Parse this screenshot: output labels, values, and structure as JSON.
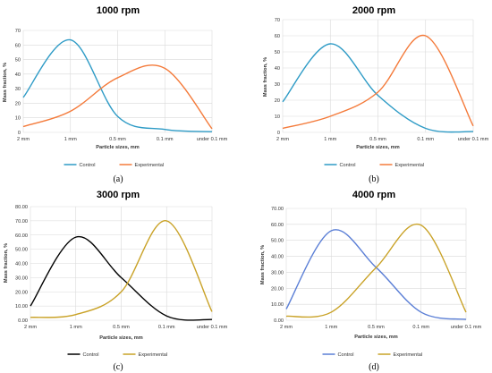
{
  "chart_data": [
    {
      "type": "line",
      "panel": "(a)",
      "title": "1000 rpm",
      "xlabel": "Particle sizes, mm",
      "ylabel": "Mass fraction, %",
      "categories": [
        "2 mm",
        "1 mm",
        "0.5 mm",
        "0.1 mm",
        "under 0.1 mm"
      ],
      "ylim": [
        0,
        70
      ],
      "yticks": [
        "0",
        "10",
        "20",
        "30",
        "40",
        "50",
        "60",
        "70"
      ],
      "grid": true,
      "legend": "bottom",
      "series": [
        {
          "name": "Control",
          "color": "#2E9BC6",
          "values": [
            24,
            63.5,
            11,
            2,
            0.5
          ]
        },
        {
          "name": "Experimental",
          "color": "#F47A3A",
          "values": [
            4,
            14.5,
            37.5,
            44,
            2.5
          ]
        }
      ]
    },
    {
      "type": "line",
      "panel": "(b)",
      "title": "2000 rpm",
      "xlabel": "Particle sizes, mm",
      "ylabel": "Mass fraction, %",
      "categories": [
        "2 mm",
        "1 mm",
        "0.5 mm",
        "0.1 mm",
        "under 0.1 mm"
      ],
      "ylim": [
        0,
        70
      ],
      "yticks": [
        "0",
        "10",
        "20",
        "30",
        "40",
        "50",
        "60",
        "70"
      ],
      "grid": true,
      "legend": "bottom",
      "series": [
        {
          "name": "Control",
          "color": "#2E9BC6",
          "values": [
            19,
            55,
            23,
            2.5,
            0.5
          ]
        },
        {
          "name": "Experimental",
          "color": "#F47A3A",
          "values": [
            2.5,
            10,
            25,
            60,
            4
          ]
        }
      ]
    },
    {
      "type": "line",
      "panel": "(c)",
      "title": "3000 rpm",
      "xlabel": "Particle sizes, mm",
      "ylabel": "Mass fraction, %",
      "categories": [
        "2 mm",
        "1 mm",
        "0.5 mm",
        "0.1 mm",
        "under 0.1 mm"
      ],
      "ylim": [
        0,
        80
      ],
      "yticks": [
        "0.00",
        "10.00",
        "20.00",
        "30.00",
        "40.00",
        "50.00",
        "60.00",
        "70.00",
        "80.00"
      ],
      "grid": true,
      "legend": "bottom",
      "series": [
        {
          "name": "Control",
          "color": "#000000",
          "values": [
            10,
            58.5,
            30,
            3,
            0.5
          ]
        },
        {
          "name": "Experimental",
          "color": "#C9A227",
          "values": [
            2,
            4,
            20,
            70,
            6
          ]
        }
      ]
    },
    {
      "type": "line",
      "panel": "(d)",
      "title": "4000 rpm",
      "xlabel": "Particle sizes, mm",
      "ylabel": "Mass fraction, %",
      "categories": [
        "2 mm",
        "1 mm",
        "0.5 mm",
        "0.1 mm",
        "under 0.1 mm"
      ],
      "ylim": [
        0,
        70
      ],
      "yticks": [
        "0.00",
        "10.00",
        "20.00",
        "30.00",
        "40.00",
        "50.00",
        "60.00",
        "70.00"
      ],
      "grid": true,
      "legend": "bottom",
      "series": [
        {
          "name": "Control",
          "color": "#5B7FD6",
          "values": [
            7,
            56,
            33,
            5,
            0.5
          ]
        },
        {
          "name": "Experimental",
          "color": "#C9A227",
          "values": [
            2.5,
            5,
            33,
            59.5,
            5
          ]
        }
      ]
    }
  ]
}
